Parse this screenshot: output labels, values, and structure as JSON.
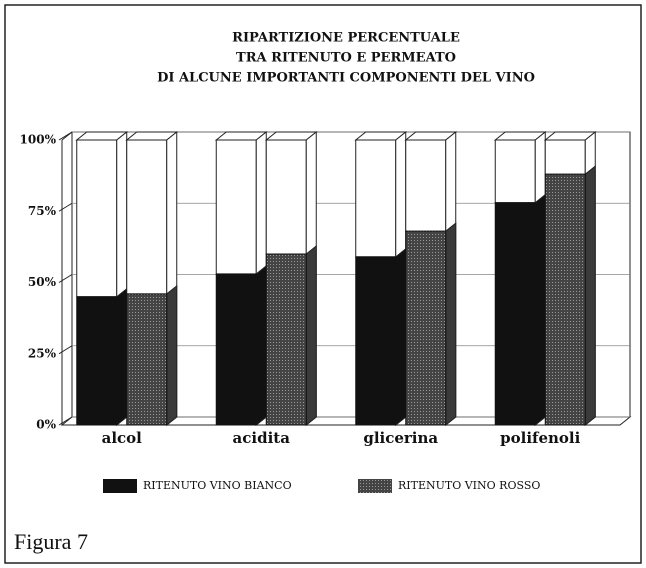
{
  "chart_data": {
    "type": "bar",
    "title": [
      "RIPARTIZIONE PERCENTUALE",
      "TRA RITENUTO E PERMEATO",
      "DI ALCUNE IMPORTANTI COMPONENTI DEL VINO"
    ],
    "categories": [
      "alcol",
      "acidita",
      "glicerina",
      "polifenoli"
    ],
    "series": [
      {
        "name": "RITENUTO VINO BIANCO",
        "color": "#111111",
        "values": [
          45,
          53,
          59,
          78
        ]
      },
      {
        "name": "RITENUTO VINO ROSSO",
        "color": "#3a3a3a",
        "values": [
          46,
          60,
          68,
          88
        ]
      }
    ],
    "ylim": [
      0,
      100
    ],
    "yticks": [
      {
        "value": 0,
        "label": "0%"
      },
      {
        "value": 25,
        "label": "25%"
      },
      {
        "value": 50,
        "label": "50%"
      },
      {
        "value": 75,
        "label": "75%"
      },
      {
        "value": 100,
        "label": "100%"
      }
    ],
    "grid": true,
    "caption": "Figura 7"
  }
}
